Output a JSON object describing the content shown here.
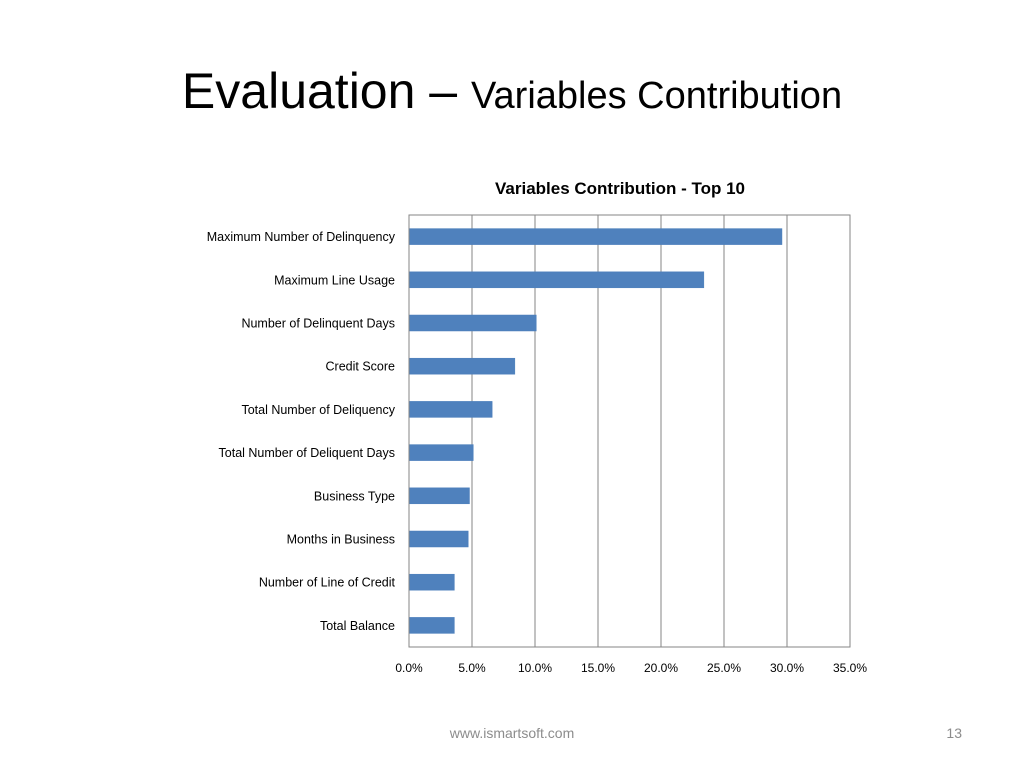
{
  "slide": {
    "title_main": "Evaluation – ",
    "title_sub": "Variables Contribution",
    "footer_url": "www.ismartsoft.com",
    "page_number": "13"
  },
  "chart_data": {
    "type": "bar",
    "orientation": "horizontal",
    "title": "Variables Contribution - Top 10",
    "xlabel": "",
    "ylabel": "",
    "categories": [
      "Maximum Number of Delinquency",
      "Maximum Line Usage",
      "Number of Delinquent Days",
      "Credit Score",
      "Total Number of Deliquency",
      "Total Number of Deliquent Days",
      "Business Type",
      "Months in Business",
      "Number of Line of Credit",
      "Total Balance"
    ],
    "values": [
      29.6,
      23.4,
      10.1,
      8.4,
      6.6,
      5.1,
      4.8,
      4.7,
      3.6,
      3.6
    ],
    "xlim": [
      0,
      35
    ],
    "x_ticks": [
      0,
      5,
      10,
      15,
      20,
      25,
      30,
      35
    ],
    "x_tick_labels": [
      "0.0%",
      "5.0%",
      "10.0%",
      "15.0%",
      "20.0%",
      "25.0%",
      "30.0%",
      "35.0%"
    ],
    "grid": "vertical",
    "legend": "none",
    "bar_color": "#4f81bd"
  }
}
